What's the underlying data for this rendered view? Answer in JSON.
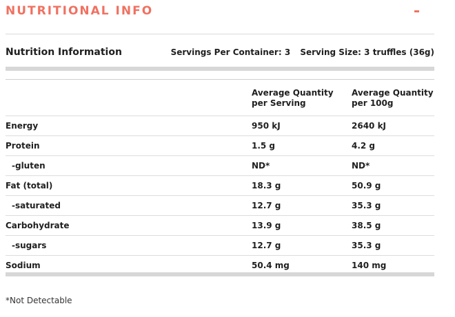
{
  "header": {
    "title": "NUTRITIONAL INFO",
    "collapse_icon": "minus-icon"
  },
  "info": {
    "title": "Nutrition Information",
    "servings_per_container": "Servings Per Container: 3",
    "serving_size": "Serving Size: 3 truffles (36g)"
  },
  "table": {
    "columns": [
      "",
      "Average Quantity per Serving",
      "Average Quantity per 100g"
    ],
    "col_per_serving_line1": "Average Quantity",
    "col_per_serving_line2": "per Serving",
    "col_per_100g_line1": "Average Quantity",
    "col_per_100g_line2": "per 100g",
    "rows": [
      {
        "label": "Energy",
        "per_serving": "950 kJ",
        "per_100g": "2640 kJ"
      },
      {
        "label": "Protein",
        "per_serving": "1.5 g",
        "per_100g": "4.2 g"
      },
      {
        "label": "-gluten",
        "per_serving": "ND*",
        "per_100g": "ND*"
      },
      {
        "label": "Fat (total)",
        "per_serving": "18.3 g",
        "per_100g": "50.9 g"
      },
      {
        "label": "-saturated",
        "per_serving": "12.7 g",
        "per_100g": "35.3 g"
      },
      {
        "label": "Carbohydrate",
        "per_serving": "13.9 g",
        "per_100g": "38.5 g"
      },
      {
        "label": "-sugars",
        "per_serving": "12.7 g",
        "per_100g": "35.3 g"
      },
      {
        "label": "Sodium",
        "per_serving": "50.4 mg",
        "per_100g": "140 mg"
      }
    ]
  },
  "footnote": "*Not Detectable",
  "colors": {
    "accent": "#f07161",
    "divider": "#d7d7d7",
    "text": "#1f1f1f"
  }
}
